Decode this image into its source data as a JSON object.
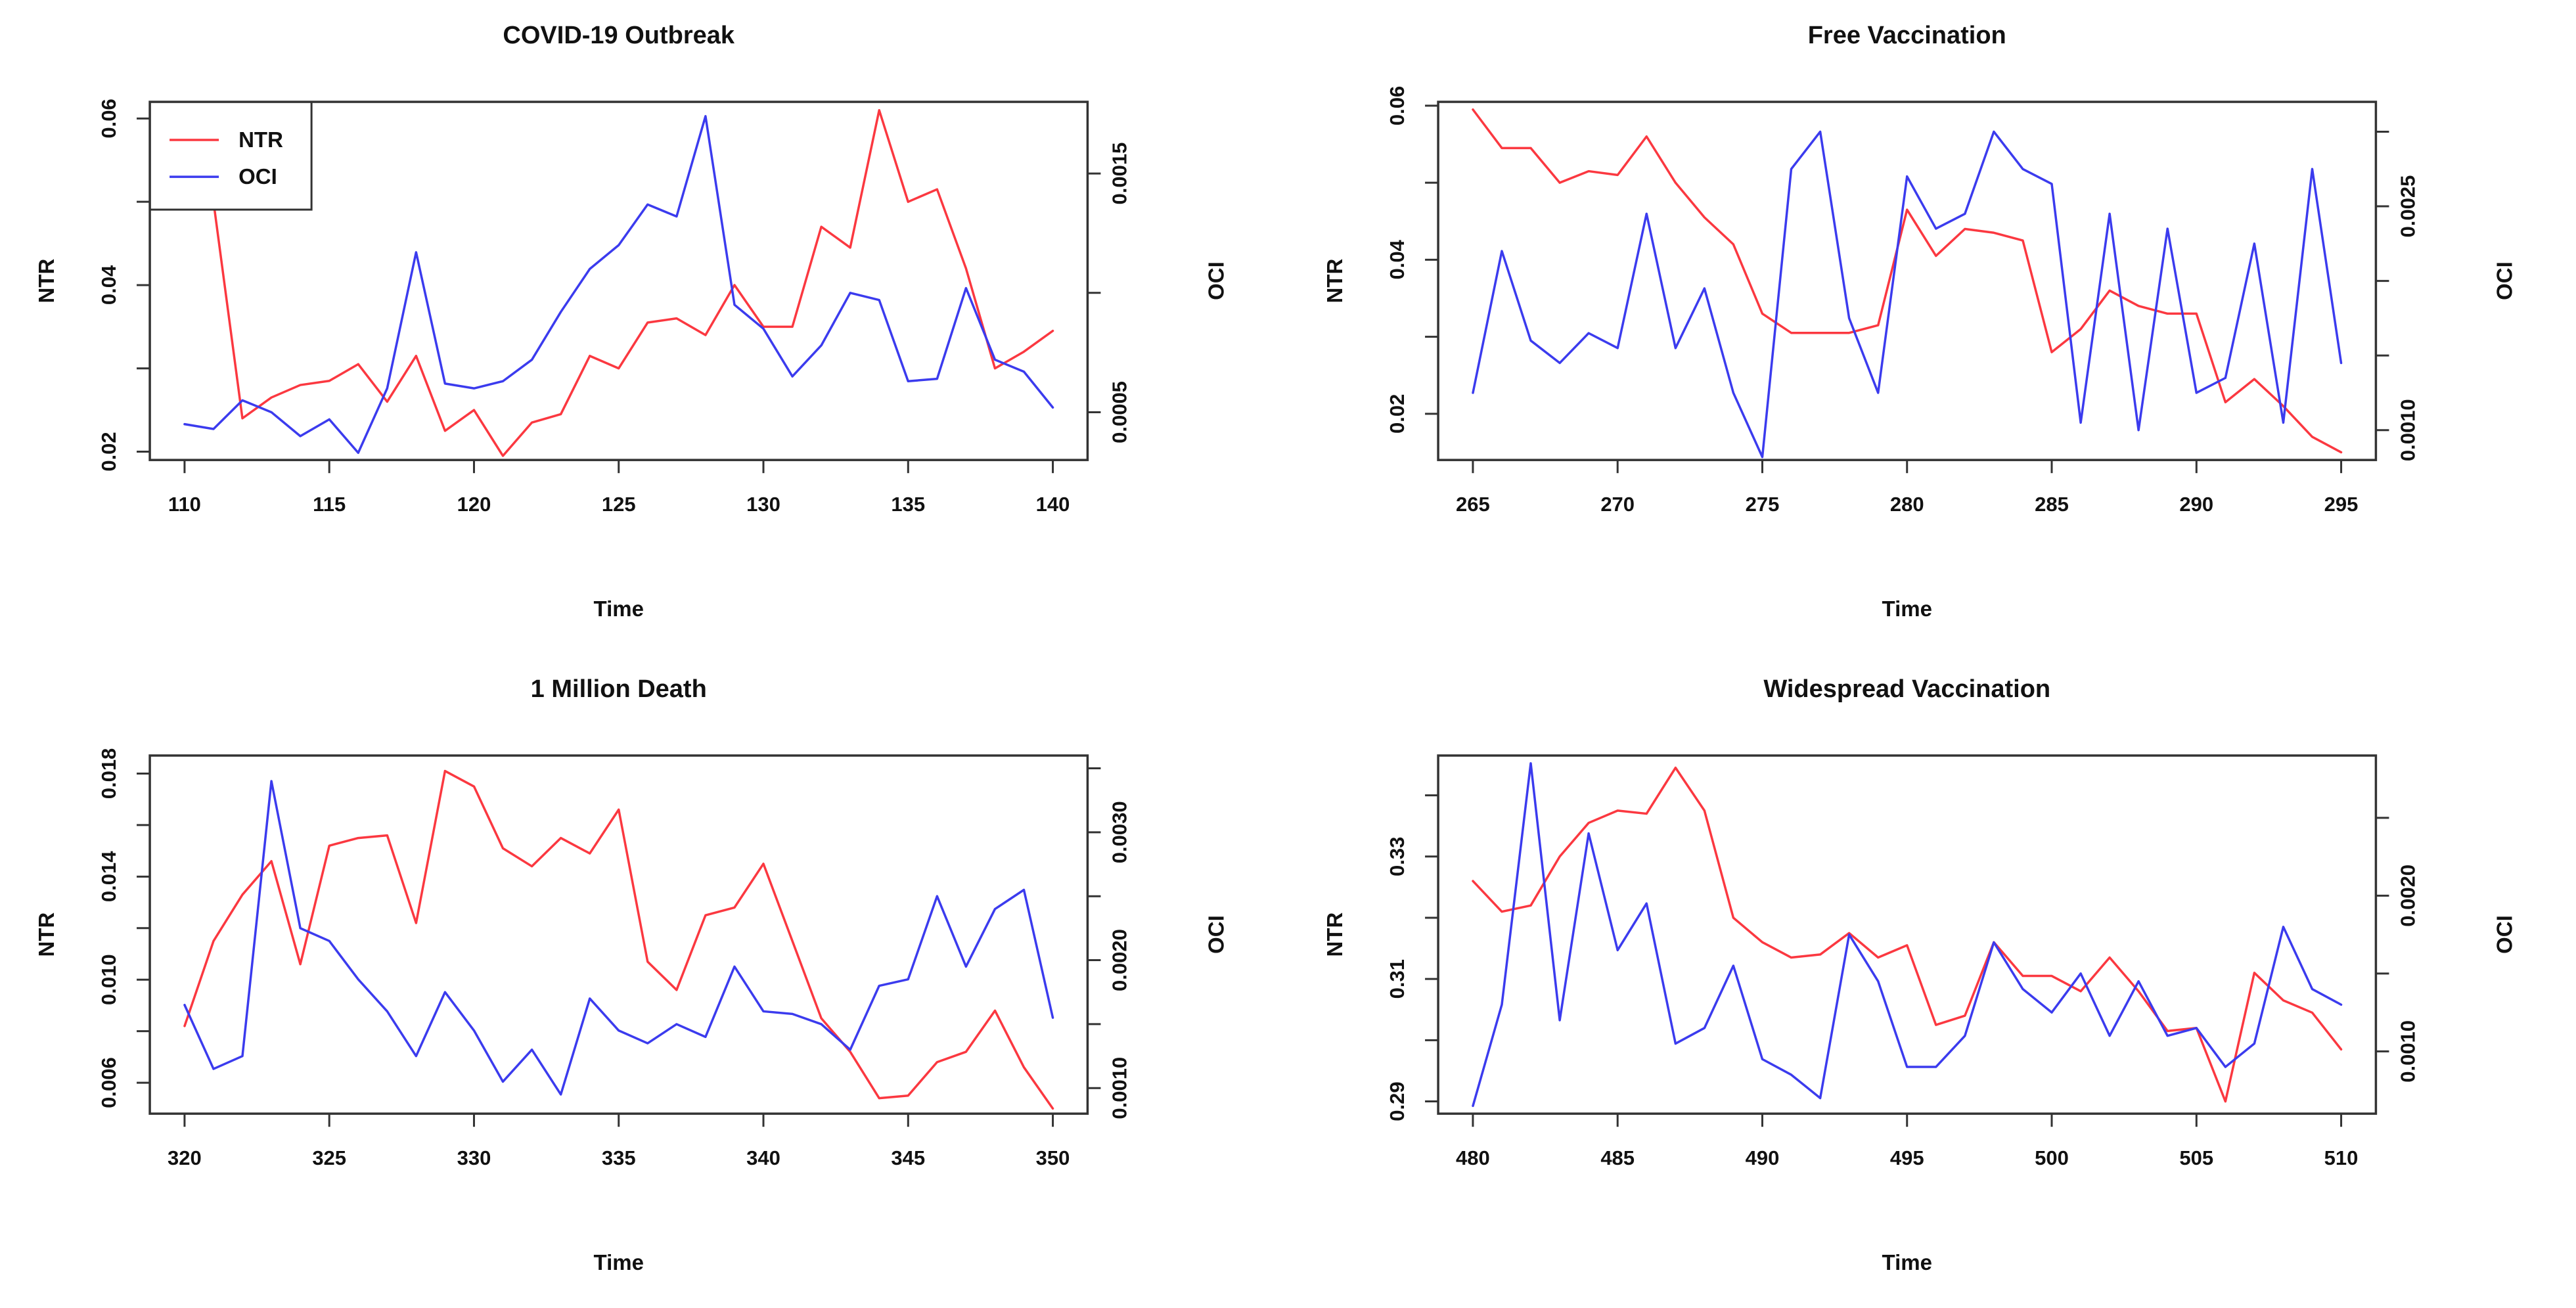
{
  "figure": {
    "background": "#ffffff",
    "series_colors": {
      "ntr": "#FB3840",
      "oci": "#3B3BEE"
    },
    "axis_color": "#333333",
    "text_color": "#111111"
  },
  "chart_data": [
    {
      "type": "line",
      "title": "COVID-19 Outbreak",
      "xlabel": "Time",
      "ylabel_left": "NTR",
      "ylabel_right": "OCI",
      "legend": {
        "visible": true,
        "entries": [
          "NTR",
          "OCI"
        ]
      },
      "x": [
        110,
        111,
        112,
        113,
        114,
        115,
        116,
        117,
        118,
        119,
        120,
        121,
        122,
        123,
        124,
        125,
        126,
        127,
        128,
        129,
        130,
        131,
        132,
        133,
        134,
        135,
        136,
        137,
        138,
        139,
        140
      ],
      "xlim": [
        108.8,
        141.2
      ],
      "x_ticks": [
        110,
        115,
        120,
        125,
        130,
        135,
        140
      ],
      "left_axis": {
        "lim": [
          0.019,
          0.062
        ],
        "ticks": [
          0.02,
          0.03,
          0.04,
          0.05,
          0.06
        ],
        "tick_labels": [
          "0.02",
          "",
          "0.04",
          "",
          "0.06"
        ]
      },
      "right_axis": {
        "lim": [
          0.0003,
          0.0018
        ],
        "ticks": [
          0.0005,
          0.001,
          0.0015
        ],
        "tick_labels": [
          "0.0005",
          "",
          "0.0015"
        ]
      },
      "series": [
        {
          "name": "NTR",
          "axis": "left",
          "color": "#FB3840",
          "values": [
            0.053,
            0.05,
            0.024,
            0.0265,
            0.028,
            0.0285,
            0.0305,
            0.026,
            0.0315,
            0.0225,
            0.025,
            0.0195,
            0.0235,
            0.0245,
            0.0315,
            0.03,
            0.0355,
            0.036,
            0.034,
            0.04,
            0.035,
            0.035,
            0.047,
            0.0445,
            0.061,
            0.05,
            0.0515,
            0.042,
            0.03,
            0.032,
            0.0345
          ]
        },
        {
          "name": "OCI",
          "axis": "right",
          "color": "#3B3BEE",
          "values": [
            0.00045,
            0.00043,
            0.00055,
            0.0005,
            0.0004,
            0.00047,
            0.00033,
            0.0006,
            0.00117,
            0.00062,
            0.0006,
            0.00063,
            0.00072,
            0.00092,
            0.0011,
            0.0012,
            0.00137,
            0.00132,
            0.00174,
            0.00095,
            0.00085,
            0.00065,
            0.00078,
            0.001,
            0.00097,
            0.00063,
            0.00064,
            0.00102,
            0.00072,
            0.00067,
            0.00052
          ]
        }
      ]
    },
    {
      "type": "line",
      "title": "Free Vaccination",
      "xlabel": "Time",
      "ylabel_left": "NTR",
      "ylabel_right": "OCI",
      "legend": {
        "visible": false,
        "entries": []
      },
      "x": [
        265,
        266,
        267,
        268,
        269,
        270,
        271,
        272,
        273,
        274,
        275,
        276,
        277,
        278,
        279,
        280,
        281,
        282,
        283,
        284,
        285,
        286,
        287,
        288,
        289,
        290,
        291,
        292,
        293,
        294,
        295
      ],
      "xlim": [
        263.8,
        296.2
      ],
      "x_ticks": [
        265,
        270,
        275,
        280,
        285,
        290,
        295
      ],
      "left_axis": {
        "lim": [
          0.014,
          0.0605
        ],
        "ticks": [
          0.02,
          0.03,
          0.04,
          0.05,
          0.06
        ],
        "tick_labels": [
          "0.02",
          "",
          "0.04",
          "",
          "0.06"
        ]
      },
      "right_axis": {
        "lim": [
          0.0008,
          0.0032
        ],
        "ticks": [
          0.001,
          0.0015,
          0.002,
          0.0025,
          0.003
        ],
        "tick_labels": [
          "0.0010",
          "",
          "",
          "0.0025",
          ""
        ]
      },
      "series": [
        {
          "name": "NTR",
          "axis": "left",
          "color": "#FB3840",
          "values": [
            0.0595,
            0.0545,
            0.0545,
            0.05,
            0.0515,
            0.051,
            0.056,
            0.05,
            0.0455,
            0.042,
            0.033,
            0.0305,
            0.0305,
            0.0305,
            0.0315,
            0.0465,
            0.0405,
            0.044,
            0.0435,
            0.0425,
            0.028,
            0.031,
            0.036,
            0.034,
            0.033,
            0.033,
            0.0215,
            0.0245,
            0.021,
            0.017,
            0.015
          ]
        },
        {
          "name": "OCI",
          "axis": "right",
          "color": "#3B3BEE",
          "values": [
            0.00125,
            0.0022,
            0.0016,
            0.00145,
            0.00165,
            0.00155,
            0.00245,
            0.00155,
            0.00195,
            0.00125,
            0.00082,
            0.00275,
            0.003,
            0.00175,
            0.00125,
            0.0027,
            0.00235,
            0.00245,
            0.003,
            0.00275,
            0.00265,
            0.00105,
            0.00245,
            0.001,
            0.00235,
            0.00125,
            0.00135,
            0.00225,
            0.00105,
            0.00275,
            0.00145
          ]
        }
      ]
    },
    {
      "type": "line",
      "title": "1 Million Death",
      "xlabel": "Time",
      "ylabel_left": "NTR",
      "ylabel_right": "OCI",
      "legend": {
        "visible": false,
        "entries": []
      },
      "x": [
        320,
        321,
        322,
        323,
        324,
        325,
        326,
        327,
        328,
        329,
        330,
        331,
        332,
        333,
        334,
        335,
        336,
        337,
        338,
        339,
        340,
        341,
        342,
        343,
        344,
        345,
        346,
        347,
        348,
        349,
        350
      ],
      "xlim": [
        318.8,
        351.2
      ],
      "x_ticks": [
        320,
        325,
        330,
        335,
        340,
        345,
        350
      ],
      "left_axis": {
        "lim": [
          0.0048,
          0.0187
        ],
        "ticks": [
          0.006,
          0.008,
          0.01,
          0.012,
          0.014,
          0.016,
          0.018
        ],
        "tick_labels": [
          "0.006",
          "",
          "0.010",
          "",
          "0.014",
          "",
          "0.018"
        ]
      },
      "right_axis": {
        "lim": [
          0.0008,
          0.0036
        ],
        "ticks": [
          0.001,
          0.0015,
          0.002,
          0.0025,
          0.003,
          0.0035
        ],
        "tick_labels": [
          "0.0010",
          "",
          "0.0020",
          "",
          "0.0030",
          ""
        ]
      },
      "series": [
        {
          "name": "NTR",
          "axis": "left",
          "color": "#FB3840",
          "values": [
            0.0082,
            0.0115,
            0.0133,
            0.0146,
            0.0106,
            0.0152,
            0.0155,
            0.0156,
            0.0122,
            0.0181,
            0.0175,
            0.0151,
            0.0144,
            0.0155,
            0.0149,
            0.0166,
            0.0107,
            0.0096,
            0.0125,
            0.0128,
            0.0145,
            0.0115,
            0.0085,
            0.0072,
            0.0054,
            0.0055,
            0.0068,
            0.0072,
            0.0088,
            0.0066,
            0.005
          ]
        },
        {
          "name": "OCI",
          "axis": "right",
          "color": "#3B3BEE",
          "values": [
            0.00165,
            0.00115,
            0.00125,
            0.0034,
            0.00225,
            0.00215,
            0.00185,
            0.0016,
            0.00125,
            0.00175,
            0.00145,
            0.00105,
            0.0013,
            0.00095,
            0.0017,
            0.00145,
            0.00135,
            0.0015,
            0.0014,
            0.00195,
            0.0016,
            0.00158,
            0.0015,
            0.0013,
            0.0018,
            0.00185,
            0.0025,
            0.00195,
            0.0024,
            0.00255,
            0.00155
          ]
        }
      ]
    },
    {
      "type": "line",
      "title": "Widespread Vaccination",
      "xlabel": "Time",
      "ylabel_left": "NTR",
      "ylabel_right": "OCI",
      "legend": {
        "visible": false,
        "entries": []
      },
      "x": [
        480,
        481,
        482,
        483,
        484,
        485,
        486,
        487,
        488,
        489,
        490,
        491,
        492,
        493,
        494,
        495,
        496,
        497,
        498,
        499,
        500,
        501,
        502,
        503,
        504,
        505,
        506,
        507,
        508,
        509,
        510
      ],
      "xlim": [
        478.8,
        511.2
      ],
      "x_ticks": [
        480,
        485,
        490,
        495,
        500,
        505,
        510
      ],
      "left_axis": {
        "lim": [
          0.288,
          0.3465
        ],
        "ticks": [
          0.29,
          0.3,
          0.31,
          0.32,
          0.33,
          0.34
        ],
        "tick_labels": [
          "0.29",
          "",
          "0.31",
          "",
          "0.33",
          ""
        ]
      },
      "right_axis": {
        "lim": [
          0.0006,
          0.0029
        ],
        "ticks": [
          0.001,
          0.0015,
          0.002,
          0.0025
        ],
        "tick_labels": [
          "0.0010",
          "",
          "0.0020",
          ""
        ]
      },
      "series": [
        {
          "name": "NTR",
          "axis": "left",
          "color": "#FB3840",
          "values": [
            0.326,
            0.321,
            0.322,
            0.33,
            0.3355,
            0.3375,
            0.337,
            0.3445,
            0.3375,
            0.32,
            0.316,
            0.3135,
            0.314,
            0.3175,
            0.3135,
            0.3155,
            0.3025,
            0.304,
            0.316,
            0.3105,
            0.3105,
            0.308,
            0.3135,
            0.308,
            0.3015,
            0.302,
            0.29,
            0.311,
            0.3065,
            0.3045,
            0.2985
          ]
        },
        {
          "name": "OCI",
          "axis": "right",
          "color": "#3B3BEE",
          "values": [
            0.00065,
            0.0013,
            0.00285,
            0.0012,
            0.0024,
            0.00165,
            0.00195,
            0.00105,
            0.00115,
            0.00155,
            0.00095,
            0.00085,
            0.0007,
            0.00175,
            0.00145,
            0.0009,
            0.0009,
            0.0011,
            0.0017,
            0.0014,
            0.00125,
            0.0015,
            0.0011,
            0.00145,
            0.0011,
            0.00115,
            0.0009,
            0.00105,
            0.0018,
            0.0014,
            0.0013
          ]
        }
      ]
    }
  ]
}
